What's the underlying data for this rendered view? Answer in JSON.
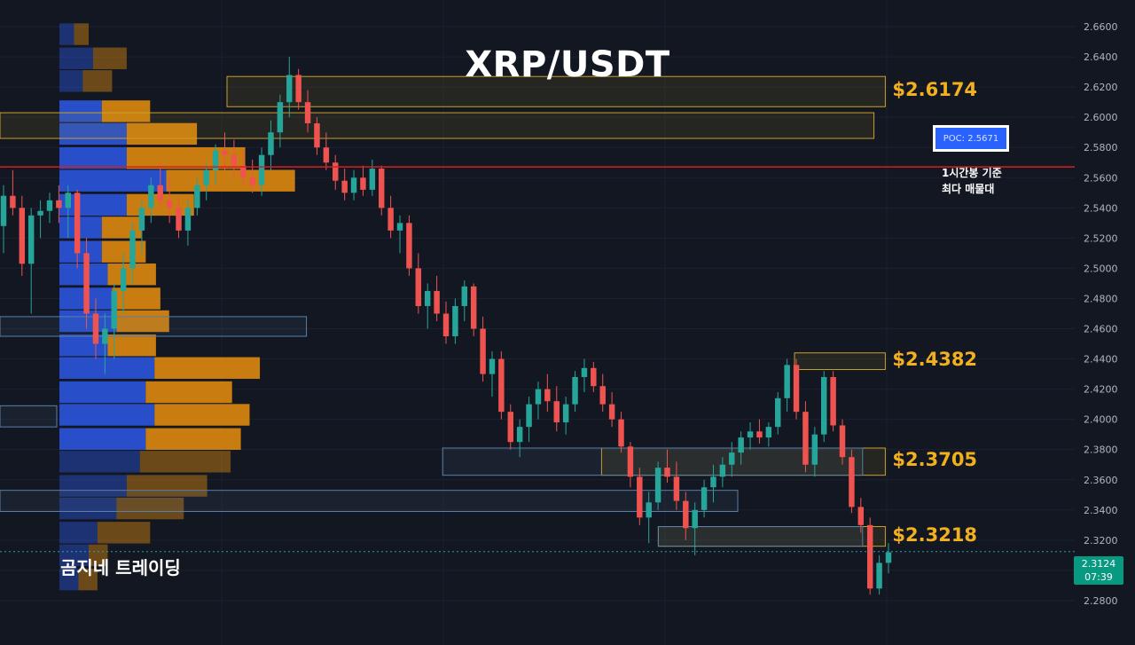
{
  "title": "XRP/USDT",
  "brand": "곰지네 트레이딩",
  "poc": {
    "label": "POC: 2.5671",
    "note_line1": "1시간봉 기준",
    "note_line2": "최다 매물대",
    "price": 2.5671
  },
  "current_price": {
    "price": "2.3124",
    "timer": "07:39",
    "value": 2.3124
  },
  "colors": {
    "background": "#131722",
    "up": "#26a69a",
    "down": "#ef5350",
    "zone_yellow": "#c9a227",
    "zone_blue": "#5b7fa6",
    "vp_up": "#2a55d8",
    "vp_down": "#d9870f",
    "poc_line": "#d61f1f",
    "label_gold": "#f2b01e"
  },
  "chart_data": {
    "type": "candlestick",
    "title": "XRP/USDT",
    "ylim": [
      2.26,
      2.67
    ],
    "yticks": [
      "2.6600",
      "2.6400",
      "2.6200",
      "2.6000",
      "2.5800",
      "2.5600",
      "2.5400",
      "2.5200",
      "2.5000",
      "2.4800",
      "2.4600",
      "2.4400",
      "2.4200",
      "2.4000",
      "2.3800",
      "2.3600",
      "2.3400",
      "2.3200",
      "2.3000",
      "2.2800"
    ],
    "zones": [
      {
        "label": "$2.6174",
        "low": 2.607,
        "high": 2.627,
        "x0": 0.2,
        "x1": 0.78,
        "color": "yellow",
        "show_label": true
      },
      {
        "label": "",
        "low": 2.586,
        "high": 2.603,
        "x0": 0.0,
        "x1": 0.77,
        "color": "yellow",
        "show_label": false
      },
      {
        "label": "$2.4382",
        "low": 2.433,
        "high": 2.444,
        "x0": 0.7,
        "x1": 0.78,
        "color": "yellow",
        "show_label": true
      },
      {
        "label": "$2.3705",
        "low": 2.363,
        "high": 2.381,
        "x0": 0.53,
        "x1": 0.78,
        "color": "yellow",
        "show_label": true
      },
      {
        "label": "",
        "low": 2.363,
        "high": 2.381,
        "x0": 0.39,
        "x1": 0.76,
        "color": "blue",
        "show_label": false
      },
      {
        "label": "$2.3218",
        "low": 2.316,
        "high": 2.329,
        "x0": 0.58,
        "x1": 0.78,
        "color": "yellow",
        "show_label": true
      },
      {
        "label": "",
        "low": 2.316,
        "high": 2.329,
        "x0": 0.58,
        "x1": 0.76,
        "color": "blue",
        "show_label": false
      },
      {
        "label": "",
        "low": 2.339,
        "high": 2.353,
        "x0": 0.0,
        "x1": 0.65,
        "color": "blue",
        "show_label": false
      },
      {
        "label": "",
        "low": 2.455,
        "high": 2.468,
        "x0": 0.0,
        "x1": 0.27,
        "color": "blue",
        "show_label": false
      },
      {
        "label": "",
        "low": 2.395,
        "high": 2.409,
        "x0": 0.0,
        "x1": 0.05,
        "color": "blue",
        "show_label": false
      }
    ],
    "volume_profile": [
      {
        "price": 2.655,
        "up": 0.1,
        "down": 0.1,
        "dim": true
      },
      {
        "price": 2.639,
        "up": 0.23,
        "down": 0.23,
        "dim": true
      },
      {
        "price": 2.624,
        "up": 0.16,
        "down": 0.2,
        "dim": true
      },
      {
        "price": 2.604,
        "up": 0.29,
        "down": 0.33,
        "dim": false
      },
      {
        "price": 2.589,
        "up": 0.46,
        "down": 0.48,
        "dim": false
      },
      {
        "price": 2.573,
        "up": 0.46,
        "down": 0.81,
        "dim": false
      },
      {
        "price": 2.558,
        "up": 0.73,
        "down": 0.88,
        "dim": false
      },
      {
        "price": 2.542,
        "up": 0.46,
        "down": 0.46,
        "dim": false
      },
      {
        "price": 2.527,
        "up": 0.29,
        "down": 0.27,
        "dim": false
      },
      {
        "price": 2.511,
        "up": 0.29,
        "down": 0.3,
        "dim": false
      },
      {
        "price": 2.496,
        "up": 0.33,
        "down": 0.33,
        "dim": false
      },
      {
        "price": 2.48,
        "up": 0.36,
        "down": 0.33,
        "dim": false
      },
      {
        "price": 2.465,
        "up": 0.39,
        "down": 0.36,
        "dim": false
      },
      {
        "price": 2.449,
        "up": 0.33,
        "down": 0.33,
        "dim": false
      },
      {
        "price": 2.434,
        "up": 0.65,
        "down": 0.72,
        "dim": false
      },
      {
        "price": 2.418,
        "up": 0.59,
        "down": 0.59,
        "dim": false
      },
      {
        "price": 2.403,
        "up": 0.65,
        "down": 0.65,
        "dim": false
      },
      {
        "price": 2.387,
        "up": 0.59,
        "down": 0.65,
        "dim": false
      },
      {
        "price": 2.372,
        "up": 0.55,
        "down": 0.62,
        "dim": true
      },
      {
        "price": 2.356,
        "up": 0.46,
        "down": 0.55,
        "dim": true
      },
      {
        "price": 2.341,
        "up": 0.39,
        "down": 0.46,
        "dim": true
      },
      {
        "price": 2.325,
        "up": 0.26,
        "down": 0.36,
        "dim": true
      },
      {
        "price": 2.31,
        "up": 0.2,
        "down": 0.13,
        "dim": true
      },
      {
        "price": 2.294,
        "up": 0.13,
        "down": 0.13,
        "dim": true
      }
    ],
    "candles": [
      [
        2.528,
        2.555,
        2.51,
        2.548
      ],
      [
        2.548,
        2.565,
        2.535,
        2.54
      ],
      [
        2.54,
        2.548,
        2.495,
        2.503
      ],
      [
        2.503,
        2.54,
        2.47,
        2.535
      ],
      [
        2.535,
        2.545,
        2.52,
        2.538
      ],
      [
        2.538,
        2.55,
        2.53,
        2.545
      ],
      [
        2.545,
        2.555,
        2.53,
        2.54
      ],
      [
        2.54,
        2.555,
        2.52,
        2.55
      ],
      [
        2.55,
        2.552,
        2.5,
        2.51
      ],
      [
        2.51,
        2.52,
        2.46,
        2.47
      ],
      [
        2.47,
        2.48,
        2.44,
        2.45
      ],
      [
        2.45,
        2.47,
        2.43,
        2.46
      ],
      [
        2.46,
        2.49,
        2.44,
        2.485
      ],
      [
        2.485,
        2.51,
        2.47,
        2.5
      ],
      [
        2.5,
        2.53,
        2.49,
        2.525
      ],
      [
        2.525,
        2.545,
        2.51,
        2.54
      ],
      [
        2.54,
        2.56,
        2.53,
        2.555
      ],
      [
        2.555,
        2.57,
        2.54,
        2.545
      ],
      [
        2.545,
        2.56,
        2.53,
        2.54
      ],
      [
        2.54,
        2.548,
        2.52,
        2.525
      ],
      [
        2.525,
        2.545,
        2.515,
        2.54
      ],
      [
        2.54,
        2.56,
        2.535,
        2.555
      ],
      [
        2.555,
        2.57,
        2.545,
        2.565
      ],
      [
        2.565,
        2.582,
        2.555,
        2.578
      ],
      [
        2.578,
        2.59,
        2.565,
        2.575
      ],
      [
        2.575,
        2.585,
        2.56,
        2.568
      ],
      [
        2.568,
        2.578,
        2.555,
        2.56
      ],
      [
        2.56,
        2.572,
        2.55,
        2.555
      ],
      [
        2.555,
        2.58,
        2.548,
        2.575
      ],
      [
        2.575,
        2.598,
        2.565,
        2.59
      ],
      [
        2.59,
        2.615,
        2.58,
        2.61
      ],
      [
        2.61,
        2.64,
        2.6,
        2.628
      ],
      [
        2.628,
        2.632,
        2.605,
        2.61
      ],
      [
        2.61,
        2.618,
        2.59,
        2.596
      ],
      [
        2.596,
        2.6,
        2.575,
        2.58
      ],
      [
        2.58,
        2.59,
        2.565,
        2.57
      ],
      [
        2.57,
        2.575,
        2.552,
        2.558
      ],
      [
        2.558,
        2.566,
        2.545,
        2.55
      ],
      [
        2.55,
        2.565,
        2.545,
        2.56
      ],
      [
        2.56,
        2.568,
        2.548,
        2.552
      ],
      [
        2.552,
        2.572,
        2.548,
        2.566
      ],
      [
        2.566,
        2.568,
        2.535,
        2.54
      ],
      [
        2.54,
        2.548,
        2.52,
        2.525
      ],
      [
        2.525,
        2.535,
        2.51,
        2.53
      ],
      [
        2.53,
        2.535,
        2.495,
        2.5
      ],
      [
        2.5,
        2.51,
        2.47,
        2.475
      ],
      [
        2.475,
        2.49,
        2.46,
        2.485
      ],
      [
        2.485,
        2.495,
        2.465,
        2.47
      ],
      [
        2.47,
        2.478,
        2.45,
        2.455
      ],
      [
        2.455,
        2.48,
        2.45,
        2.475
      ],
      [
        2.475,
        2.492,
        2.465,
        2.488
      ],
      [
        2.488,
        2.49,
        2.455,
        2.46
      ],
      [
        2.46,
        2.468,
        2.425,
        2.43
      ],
      [
        2.43,
        2.445,
        2.415,
        2.44
      ],
      [
        2.44,
        2.445,
        2.4,
        2.405
      ],
      [
        2.405,
        2.41,
        2.38,
        2.385
      ],
      [
        2.385,
        2.4,
        2.375,
        2.395
      ],
      [
        2.395,
        2.415,
        2.385,
        2.41
      ],
      [
        2.41,
        2.425,
        2.4,
        2.42
      ],
      [
        2.42,
        2.43,
        2.405,
        2.412
      ],
      [
        2.412,
        2.422,
        2.392,
        2.398
      ],
      [
        2.398,
        2.415,
        2.39,
        2.41
      ],
      [
        2.41,
        2.432,
        2.405,
        2.428
      ],
      [
        2.428,
        2.44,
        2.418,
        2.434
      ],
      [
        2.434,
        2.438,
        2.418,
        2.422
      ],
      [
        2.422,
        2.43,
        2.405,
        2.41
      ],
      [
        2.41,
        2.418,
        2.395,
        2.4
      ],
      [
        2.4,
        2.405,
        2.378,
        2.382
      ],
      [
        2.382,
        2.385,
        2.355,
        2.362
      ],
      [
        2.362,
        2.368,
        2.33,
        2.335
      ],
      [
        2.335,
        2.352,
        2.318,
        2.345
      ],
      [
        2.345,
        2.372,
        2.34,
        2.368
      ],
      [
        2.368,
        2.38,
        2.358,
        2.362
      ],
      [
        2.362,
        2.372,
        2.34,
        2.346
      ],
      [
        2.346,
        2.352,
        2.32,
        2.328
      ],
      [
        2.328,
        2.345,
        2.31,
        2.34
      ],
      [
        2.34,
        2.36,
        2.335,
        2.355
      ],
      [
        2.355,
        2.37,
        2.345,
        2.362
      ],
      [
        2.362,
        2.375,
        2.355,
        2.37
      ],
      [
        2.37,
        2.385,
        2.362,
        2.378
      ],
      [
        2.378,
        2.392,
        2.37,
        2.388
      ],
      [
        2.388,
        2.398,
        2.38,
        2.392
      ],
      [
        2.392,
        2.4,
        2.384,
        2.388
      ],
      [
        2.388,
        2.398,
        2.382,
        2.395
      ],
      [
        2.395,
        2.418,
        2.39,
        2.414
      ],
      [
        2.414,
        2.44,
        2.405,
        2.436
      ],
      [
        2.436,
        2.44,
        2.4,
        2.405
      ],
      [
        2.405,
        2.412,
        2.365,
        2.37
      ],
      [
        2.37,
        2.395,
        2.362,
        2.39
      ],
      [
        2.39,
        2.432,
        2.385,
        2.428
      ],
      [
        2.428,
        2.432,
        2.392,
        2.396
      ],
      [
        2.396,
        2.4,
        2.37,
        2.375
      ],
      [
        2.375,
        2.38,
        2.338,
        2.342
      ],
      [
        2.342,
        2.348,
        2.325,
        2.33
      ],
      [
        2.33,
        2.335,
        2.284,
        2.288
      ],
      [
        2.288,
        2.31,
        2.284,
        2.305
      ],
      [
        2.305,
        2.318,
        2.298,
        2.312
      ]
    ]
  }
}
